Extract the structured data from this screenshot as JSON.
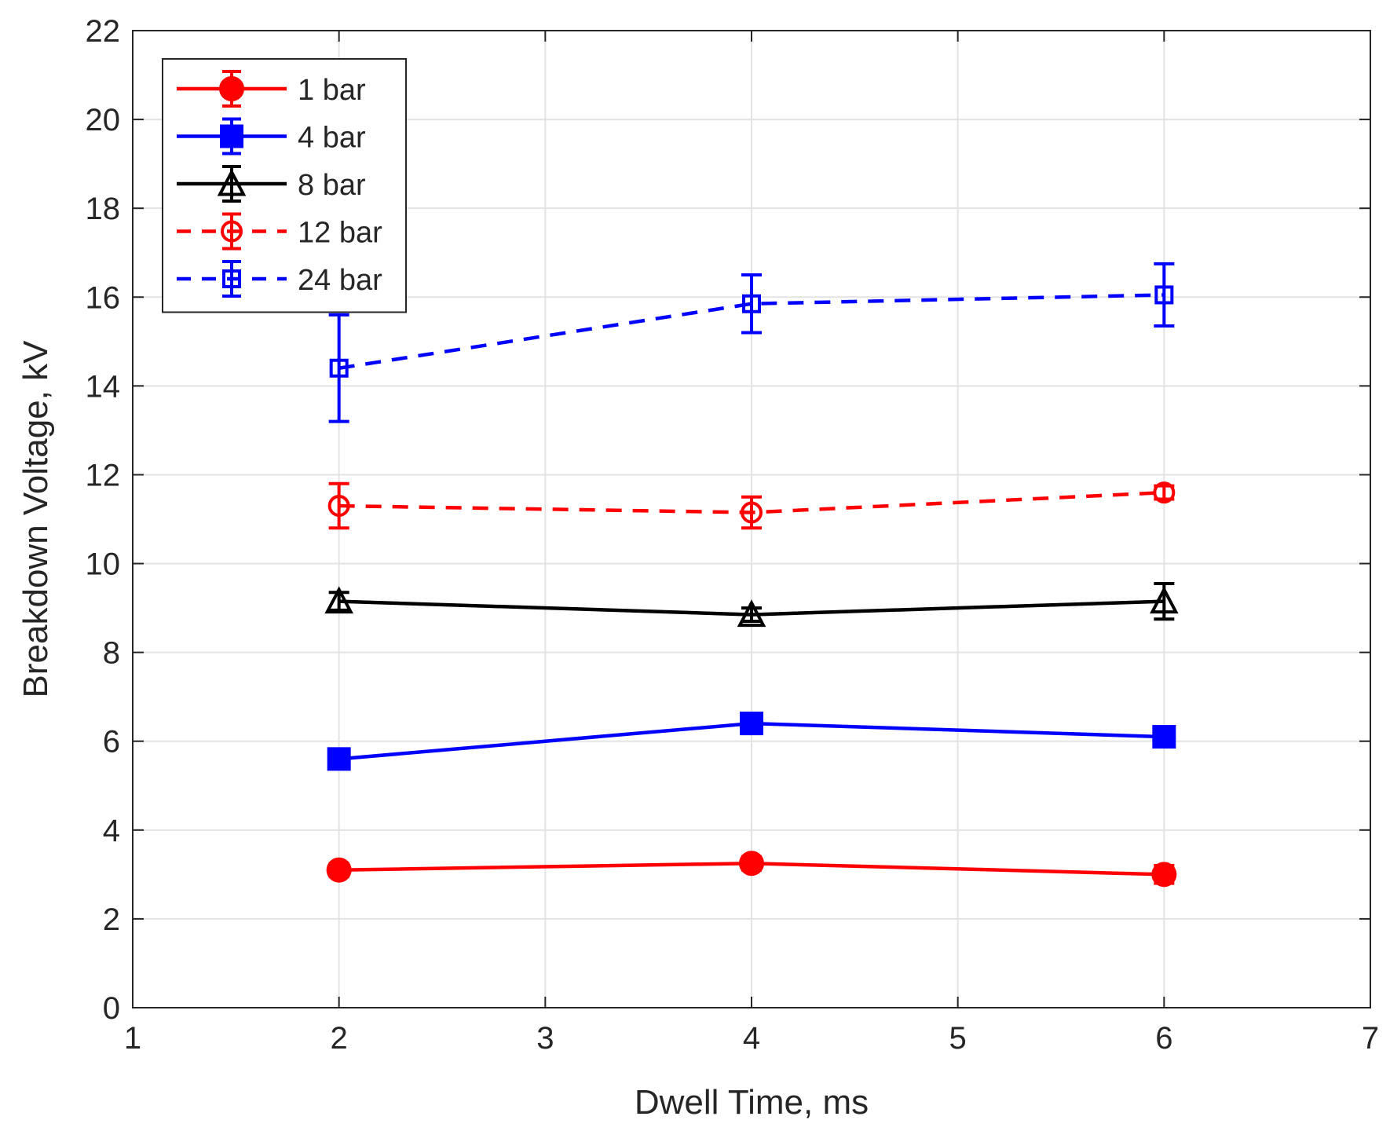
{
  "chart_data": {
    "type": "line",
    "title": "",
    "xlabel": "Dwell Time, ms",
    "ylabel": "Breakdown Voltage, kV",
    "xlim": [
      1,
      7
    ],
    "ylim": [
      0,
      22
    ],
    "xticks": [
      1,
      2,
      3,
      4,
      5,
      6,
      7
    ],
    "yticks": [
      0,
      2,
      4,
      6,
      8,
      10,
      12,
      14,
      16,
      18,
      20,
      22
    ],
    "grid": true,
    "legend_position": "top-left",
    "x": [
      2,
      4,
      6
    ],
    "series": [
      {
        "name": "1 bar",
        "color": "#ff0000",
        "line_style": "solid",
        "marker": "circle",
        "filled": true,
        "values": [
          3.1,
          3.25,
          3.0
        ],
        "errors": [
          0.15,
          0.15,
          0.2
        ]
      },
      {
        "name": "4 bar",
        "color": "#0000ff",
        "line_style": "solid",
        "marker": "square",
        "filled": true,
        "values": [
          5.6,
          6.4,
          6.1
        ],
        "errors": [
          0.1,
          0.2,
          0.15
        ]
      },
      {
        "name": "8 bar",
        "color": "#000000",
        "line_style": "solid",
        "marker": "triangle",
        "filled": false,
        "values": [
          9.15,
          8.85,
          9.15
        ],
        "errors": [
          0.2,
          0.15,
          0.4
        ]
      },
      {
        "name": "12 bar",
        "color": "#ff0000",
        "line_style": "dashed",
        "marker": "circle",
        "filled": false,
        "values": [
          11.3,
          11.15,
          11.6
        ],
        "errors": [
          0.5,
          0.35,
          0.15
        ]
      },
      {
        "name": "24 bar",
        "color": "#0000ff",
        "line_style": "dashed",
        "marker": "square",
        "filled": false,
        "values": [
          14.4,
          15.85,
          16.05
        ],
        "errors": [
          1.2,
          0.65,
          0.7
        ]
      }
    ]
  }
}
